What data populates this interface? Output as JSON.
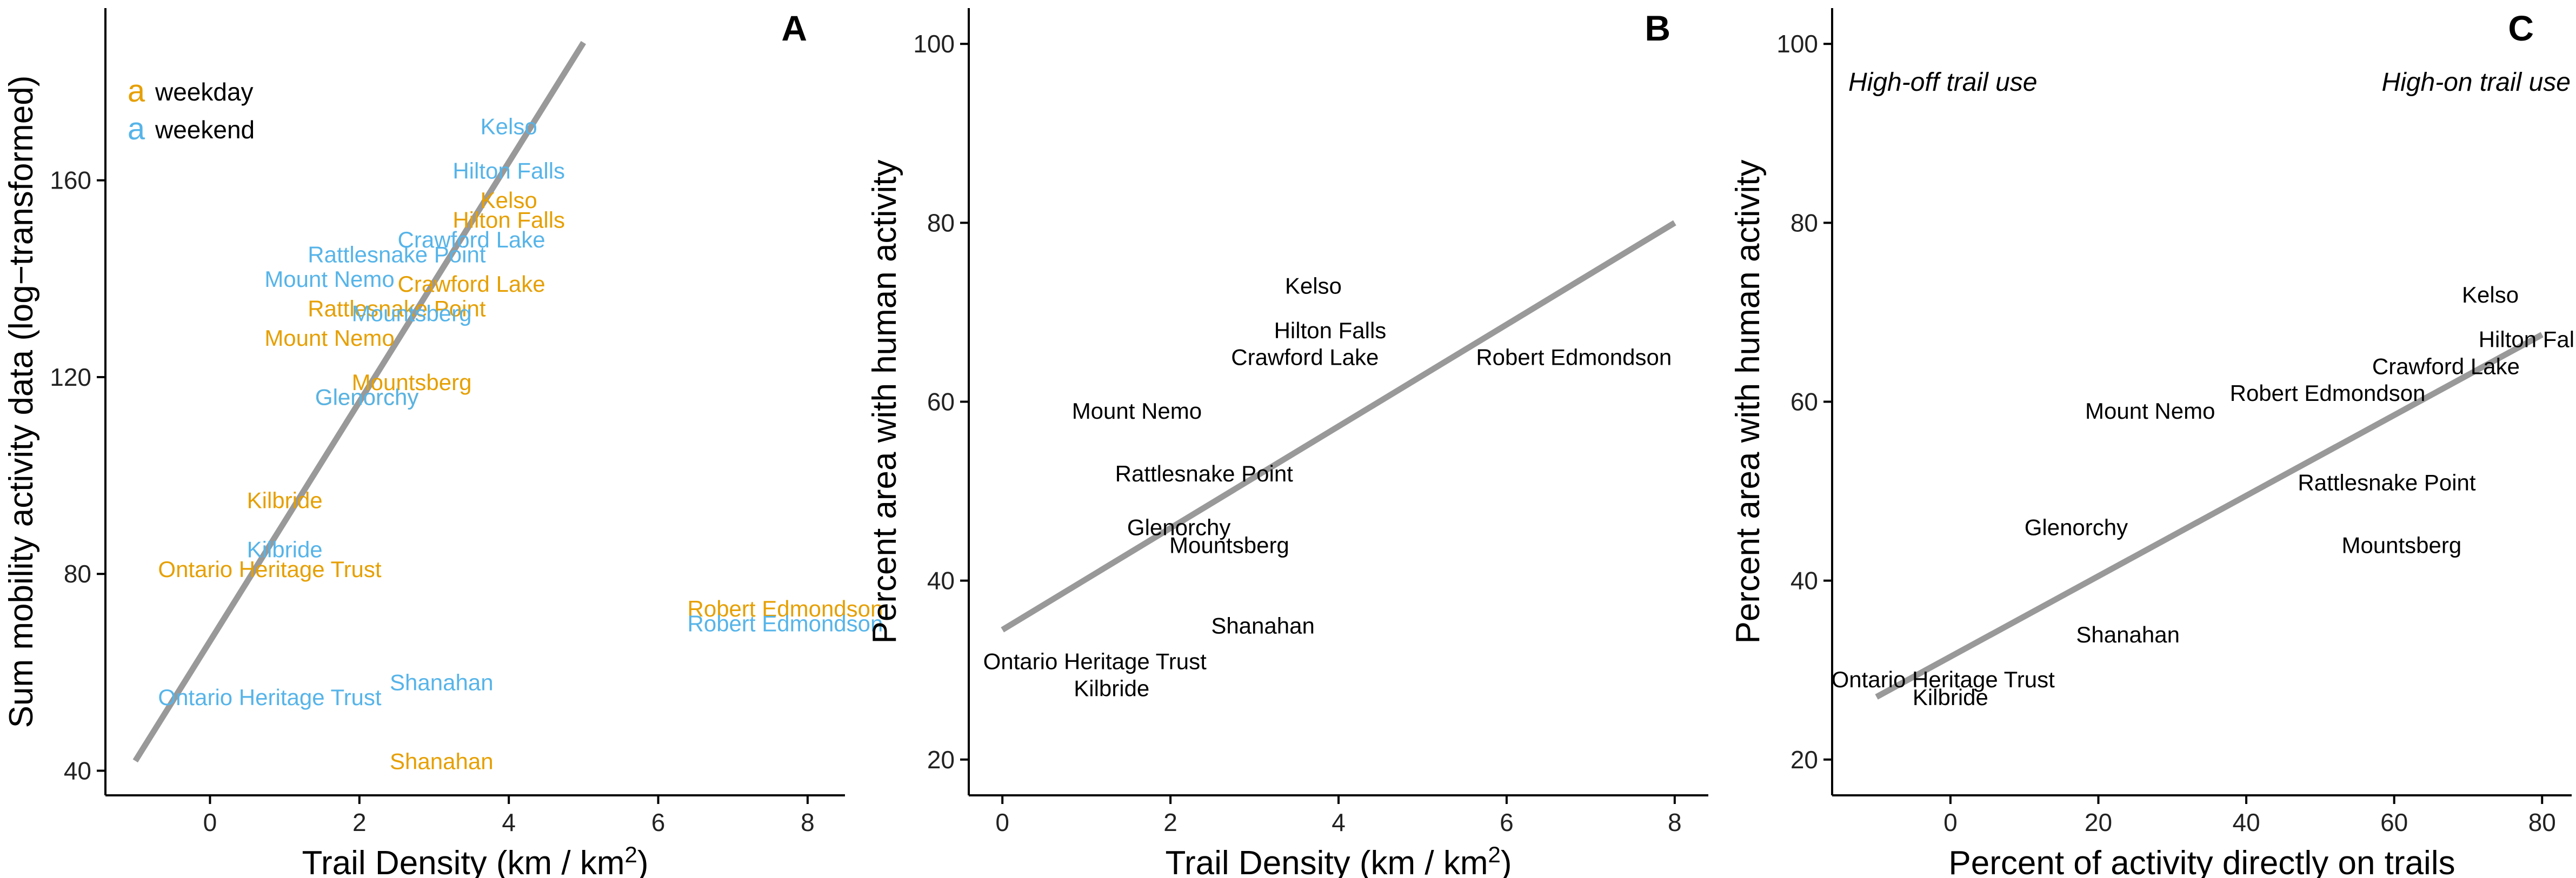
{
  "colors": {
    "weekday": "#E69F00",
    "weekend": "#56B4E9",
    "fit_line": "#999999",
    "label_black": "#000000"
  },
  "legend": {
    "glyph": "a",
    "weekday": "weekday",
    "weekend": "weekend"
  },
  "chart_data": [
    {
      "panel": "A",
      "type": "scatter",
      "xlabel": "Trail Density (km / km",
      "xlabel_sup": "2",
      "xlabel_end": ")",
      "ylabel": "Sum mobility activity data (log−transformed)",
      "xlim": [
        -1.4,
        8.5
      ],
      "ylim": [
        35,
        195
      ],
      "xticks": [
        0,
        2,
        4,
        6,
        8
      ],
      "yticks": [
        40,
        80,
        120,
        160
      ],
      "legend_position": "top-left",
      "grid": false,
      "series": [
        {
          "name": "weekday",
          "points": [
            {
              "label": "Kelso",
              "x": 4.0,
              "y": 156
            },
            {
              "label": "Hilton Falls",
              "x": 4.0,
              "y": 152
            },
            {
              "label": "Crawford Lake",
              "x": 3.5,
              "y": 139
            },
            {
              "label": "Rattlesnake Point",
              "x": 2.5,
              "y": 134
            },
            {
              "label": "Mount Nemo",
              "x": 1.6,
              "y": 128
            },
            {
              "label": "Mountsberg",
              "x": 2.7,
              "y": 119
            },
            {
              "label": "Glenorchy",
              "x": 2.1,
              "y": 116
            },
            {
              "label": "Kilbride",
              "x": 1.0,
              "y": 95
            },
            {
              "label": "Ontario Heritage Trust",
              "x": 0.8,
              "y": 81
            },
            {
              "label": "Robert Edmondson",
              "x": 7.7,
              "y": 73
            },
            {
              "label": "Shanahan",
              "x": 3.1,
              "y": 42
            }
          ]
        },
        {
          "name": "weekend",
          "points": [
            {
              "label": "Kelso",
              "x": 4.0,
              "y": 171
            },
            {
              "label": "Hilton Falls",
              "x": 4.0,
              "y": 162
            },
            {
              "label": "Crawford Lake",
              "x": 3.5,
              "y": 148
            },
            {
              "label": "Rattlesnake Point",
              "x": 2.5,
              "y": 145
            },
            {
              "label": "Mount Nemo",
              "x": 1.6,
              "y": 140
            },
            {
              "label": "Mountsberg",
              "x": 2.7,
              "y": 133
            },
            {
              "label": "Glenorchy",
              "x": 2.1,
              "y": 116
            },
            {
              "label": "Kilbride",
              "x": 1.0,
              "y": 85
            },
            {
              "label": "Ontario Heritage Trust",
              "x": 0.8,
              "y": 55
            },
            {
              "label": "Robert Edmondson",
              "x": 7.7,
              "y": 70
            },
            {
              "label": "Shanahan",
              "x": 3.1,
              "y": 58
            }
          ]
        }
      ],
      "fit_line": {
        "x": [
          -1.0,
          5.0
        ],
        "y": [
          42,
          188
        ]
      }
    },
    {
      "panel": "B",
      "type": "scatter",
      "xlabel": "Trail Density (km / km",
      "xlabel_sup": "2",
      "xlabel_end": ")",
      "ylabel": "Percent area with human activity",
      "xlim": [
        -0.4,
        8.4
      ],
      "ylim": [
        16,
        104
      ],
      "xticks": [
        0,
        2,
        4,
        6,
        8
      ],
      "yticks": [
        20,
        40,
        60,
        80,
        100
      ],
      "grid": false,
      "points": [
        {
          "label": "Kelso",
          "x": 3.7,
          "y": 73
        },
        {
          "label": "Hilton Falls",
          "x": 3.9,
          "y": 68
        },
        {
          "label": "Crawford Lake",
          "x": 3.6,
          "y": 65
        },
        {
          "label": "Robert Edmondson",
          "x": 6.8,
          "y": 65
        },
        {
          "label": "Mount Nemo",
          "x": 1.6,
          "y": 59
        },
        {
          "label": "Rattlesnake Point",
          "x": 2.4,
          "y": 52
        },
        {
          "label": "Glenorchy",
          "x": 2.1,
          "y": 46
        },
        {
          "label": "Mountsberg",
          "x": 2.7,
          "y": 44
        },
        {
          "label": "Shanahan",
          "x": 3.1,
          "y": 35
        },
        {
          "label": "Ontario Heritage Trust",
          "x": 1.1,
          "y": 31
        },
        {
          "label": "Kilbride",
          "x": 1.3,
          "y": 28
        }
      ],
      "fit_line": {
        "x": [
          0.0,
          8.0
        ],
        "y": [
          34.5,
          80.0
        ]
      }
    },
    {
      "panel": "C",
      "type": "scatter",
      "xlabel": "Percent of activity directly on trails",
      "ylabel": "Percent area with human activity",
      "xlim": [
        -16,
        84
      ],
      "ylim": [
        16,
        104
      ],
      "xticks": [
        0,
        20,
        40,
        60,
        80
      ],
      "yticks": [
        20,
        40,
        60,
        80,
        100
      ],
      "grid": false,
      "annotations": [
        "High-off trail use",
        "High-on trail use"
      ],
      "points": [
        {
          "label": "Kelso",
          "x": 73,
          "y": 72
        },
        {
          "label": "Hilton Falls",
          "x": 79,
          "y": 67
        },
        {
          "label": "Crawford Lake",
          "x": 67,
          "y": 64
        },
        {
          "label": "Robert Edmondson",
          "x": 51,
          "y": 61
        },
        {
          "label": "Mount Nemo",
          "x": 27,
          "y": 59
        },
        {
          "label": "Rattlesnake Point",
          "x": 59,
          "y": 51
        },
        {
          "label": "Glenorchy",
          "x": 17,
          "y": 46
        },
        {
          "label": "Mountsberg",
          "x": 61,
          "y": 44
        },
        {
          "label": "Shanahan",
          "x": 24,
          "y": 34
        },
        {
          "label": "Ontario Heritage Trust",
          "x": -1,
          "y": 29
        },
        {
          "label": "Kilbride",
          "x": 0,
          "y": 27
        }
      ],
      "fit_line": {
        "x": [
          -10,
          80
        ],
        "y": [
          27,
          67.5
        ]
      }
    }
  ]
}
